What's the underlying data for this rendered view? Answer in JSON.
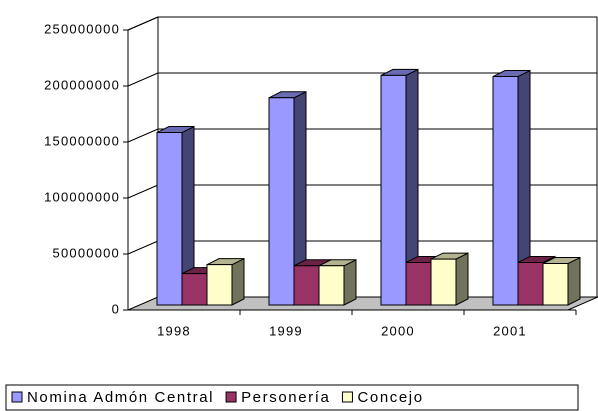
{
  "chart_data": {
    "type": "bar3d",
    "categories": [
      "1998",
      "1999",
      "2000",
      "2001"
    ],
    "series": [
      {
        "name": "Nomina Admón Central",
        "color": "#9999ff",
        "values": [
          154000000,
          185000000,
          205000000,
          204000000
        ]
      },
      {
        "name": "Personería",
        "color": "#993366",
        "values": [
          28000000,
          35000000,
          38000000,
          38000000
        ]
      },
      {
        "name": "Concejo",
        "color": "#ffffcc",
        "values": [
          36000000,
          35000000,
          41000000,
          37000000
        ]
      }
    ],
    "ylim": [
      0,
      250000000
    ],
    "yticks": [
      0,
      50000000,
      100000000,
      150000000,
      200000000,
      250000000
    ],
    "grid": true,
    "legend": "bottom"
  }
}
